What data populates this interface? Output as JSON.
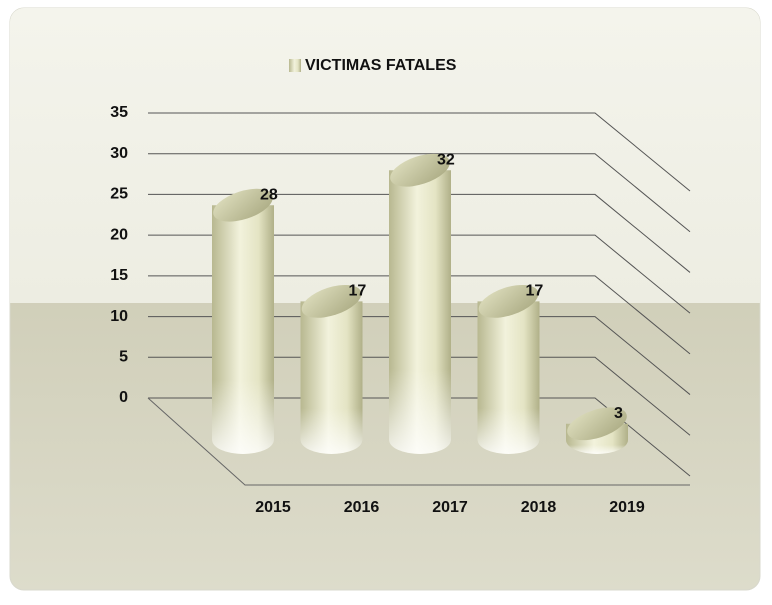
{
  "chart_data": {
    "type": "bar",
    "title": "VICTIMAS FATALES",
    "categories": [
      "2015",
      "2016",
      "2017",
      "2018",
      "2019"
    ],
    "series": [
      {
        "name": "VICTIMAS FATALES",
        "color": "#e6e6c8",
        "values": [
          28,
          17,
          32,
          17,
          3
        ]
      }
    ],
    "ylim": [
      0,
      35
    ],
    "yticks": [
      0,
      5,
      10,
      15,
      20,
      25,
      30,
      35
    ],
    "grid": true
  }
}
